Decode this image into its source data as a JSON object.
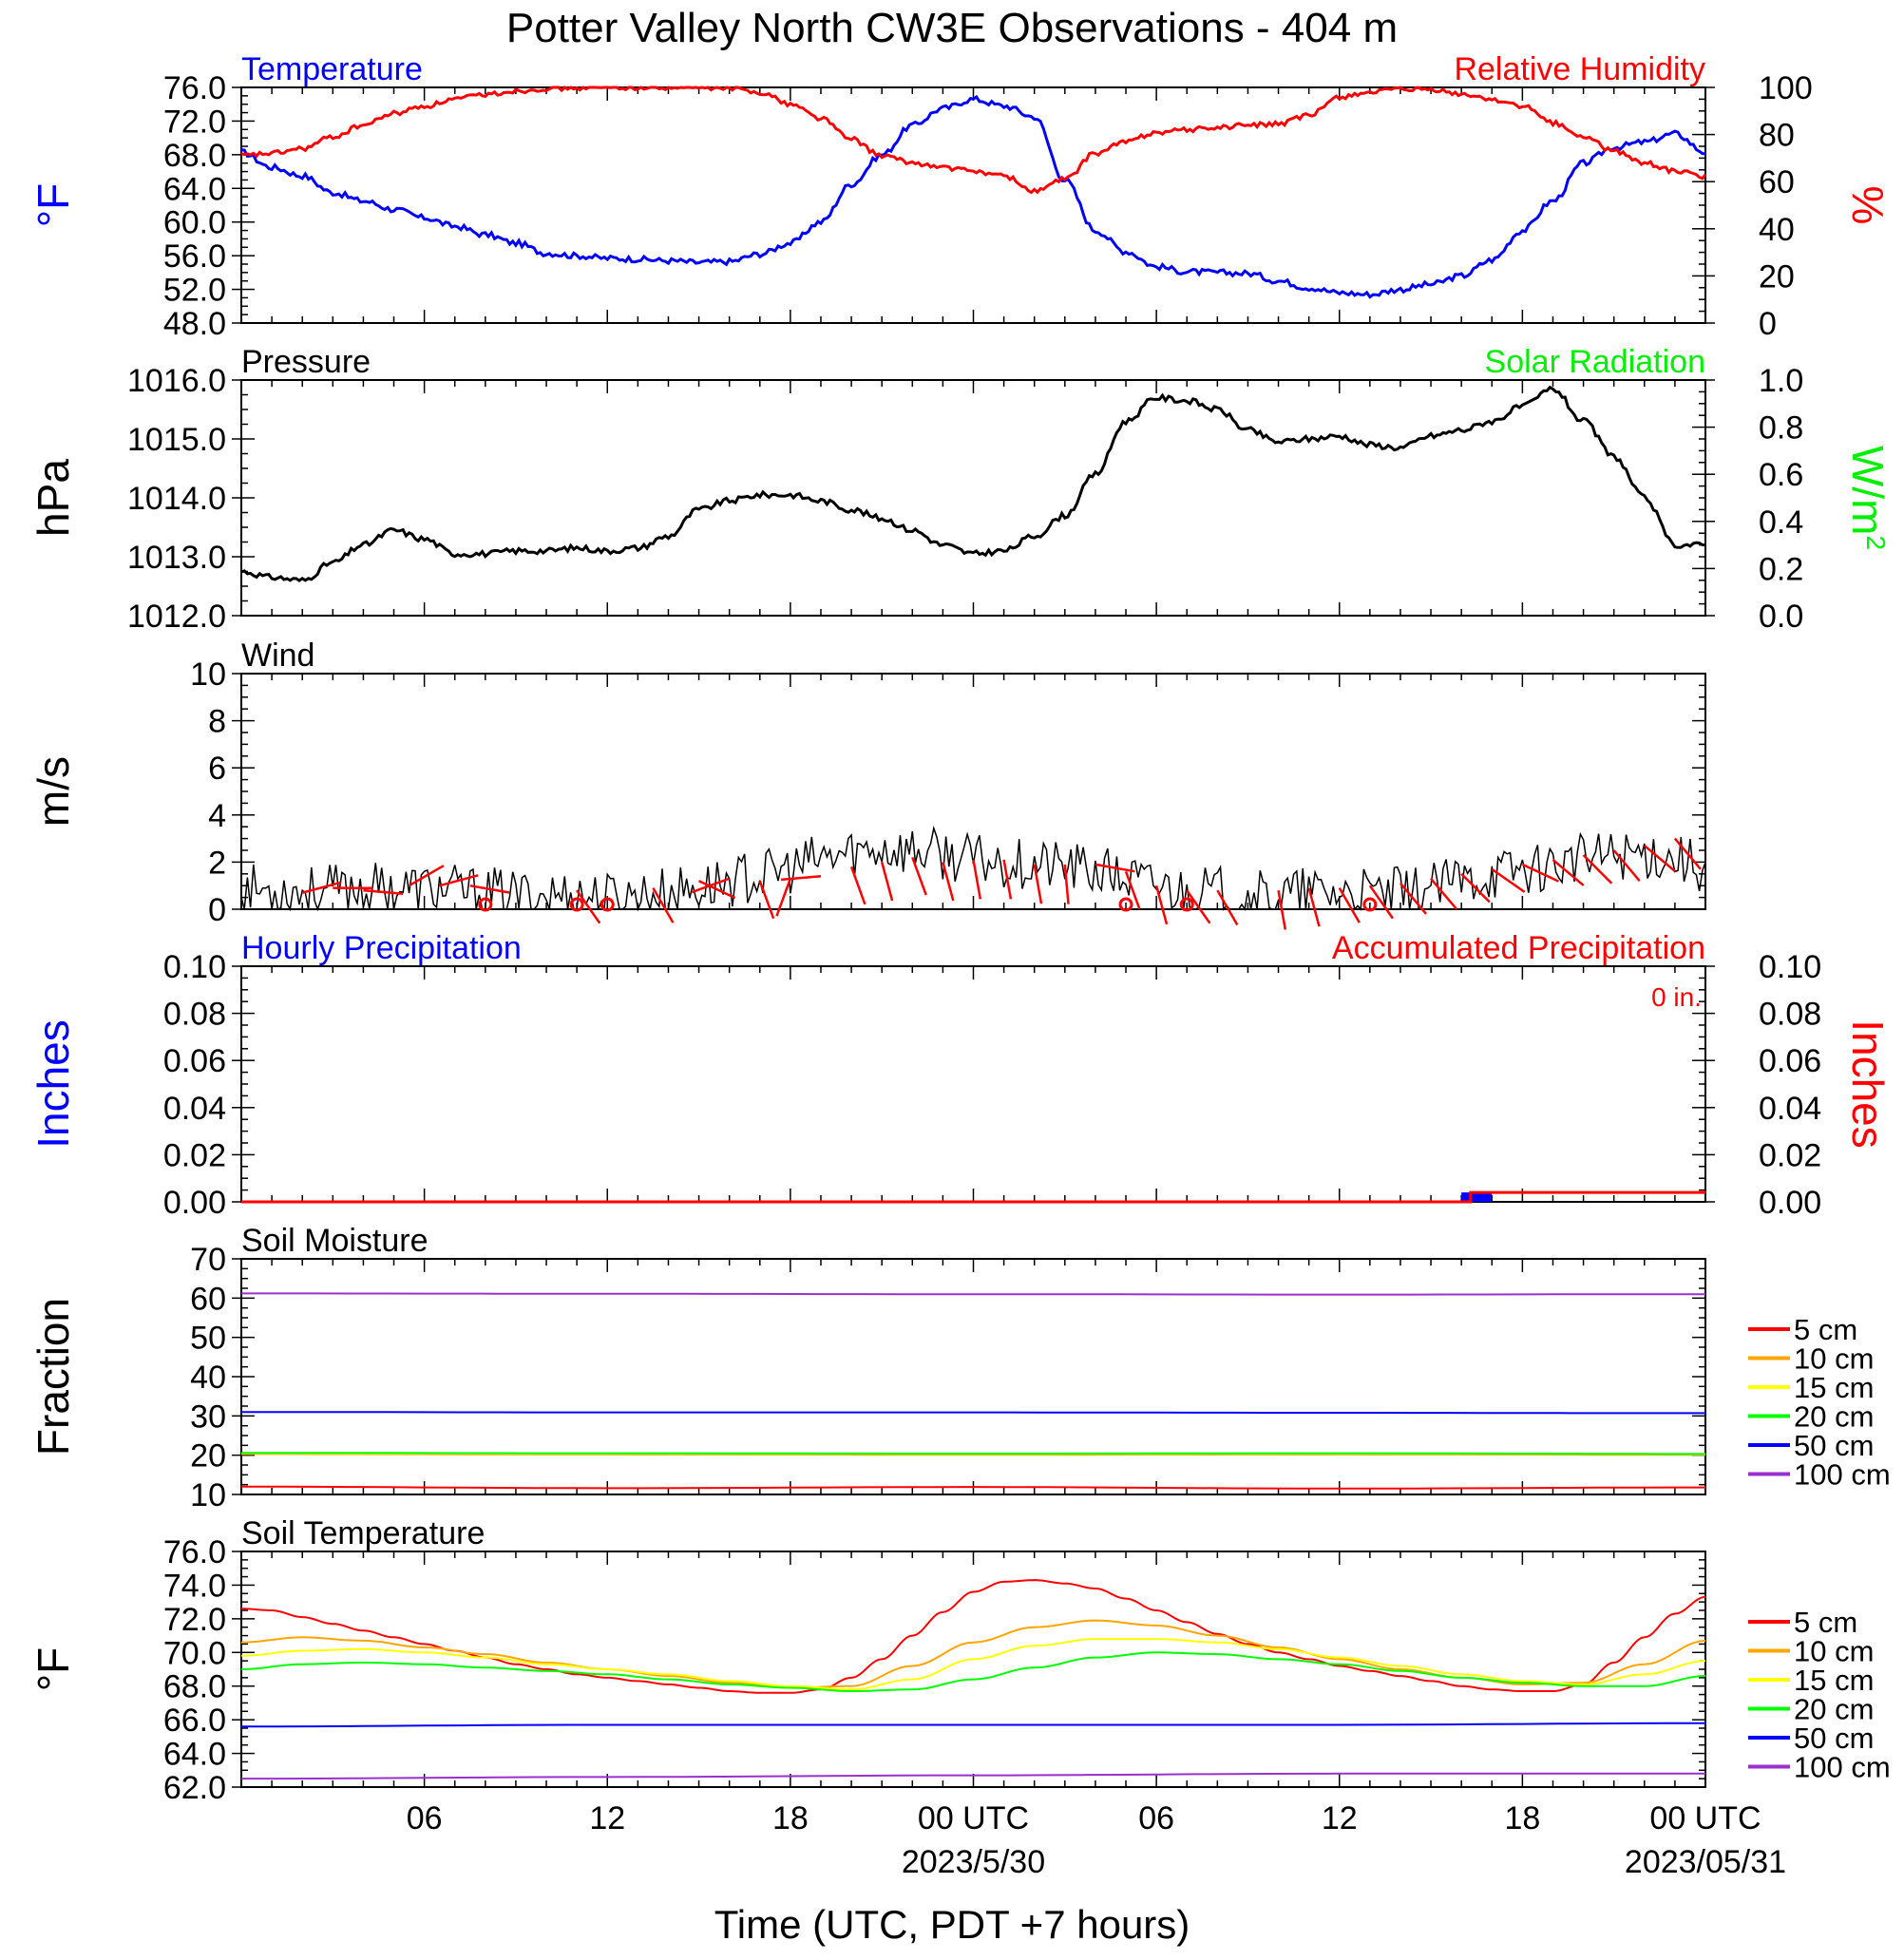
{
  "title": "Potter Valley North CW3E Observations - 404 m",
  "xlabel": "Time (UTC, PDT +7 hours)",
  "time_ticks": [
    {
      "h": 6,
      "label": "06"
    },
    {
      "h": 12,
      "label": "12"
    },
    {
      "h": 18,
      "label": "18"
    },
    {
      "h": 24,
      "label": "00 UTC",
      "date": "2023/5/30"
    },
    {
      "h": 30,
      "label": "06"
    },
    {
      "h": 36,
      "label": "12"
    },
    {
      "h": 42,
      "label": "18"
    },
    {
      "h": 48,
      "label": "00 UTC",
      "date": "2023/05/31"
    }
  ],
  "chart_data": [
    {
      "type": "line",
      "title_left": "Temperature",
      "title_right": "Relative Humidity",
      "ylabel_left": "°F",
      "ylabel_right": "%",
      "ylim_left": [
        48,
        76
      ],
      "ylim_right": [
        0,
        100
      ],
      "yticks_left": [
        "48.0",
        "52.0",
        "56.0",
        "60.0",
        "64.0",
        "68.0",
        "72.0",
        "76.0"
      ],
      "yticks_right": [
        "0",
        "20",
        "40",
        "60",
        "80",
        "100"
      ],
      "series": [
        {
          "name": "Temperature",
          "axis": "left",
          "color": "#0000ff",
          "x": [
            0,
            1,
            2,
            3,
            4,
            5,
            6,
            7,
            8,
            9,
            10,
            11,
            12,
            13,
            14,
            15,
            16,
            17,
            18,
            19,
            20,
            21,
            22,
            23,
            24,
            25,
            26,
            27,
            28,
            29,
            30,
            31,
            32,
            33,
            34,
            35,
            36,
            37,
            38,
            39,
            40,
            41,
            42,
            43,
            44,
            45,
            46,
            47,
            48
          ],
          "y": [
            68.3,
            66.5,
            65.5,
            63.5,
            62.5,
            61.5,
            60.5,
            59.5,
            58.5,
            57.5,
            56.3,
            56,
            55.7,
            55.6,
            55.4,
            55.2,
            55.3,
            56.2,
            57.5,
            60,
            64.5,
            68,
            71.5,
            73.5,
            74.6,
            73.8,
            72.5,
            65,
            59,
            56.5,
            54.7,
            54.1,
            54,
            53.9,
            53,
            52.2,
            51.6,
            51.4,
            52,
            52.6,
            53.6,
            55.5,
            59,
            62.5,
            67,
            68.9,
            69.5,
            70.5,
            68.3
          ]
        },
        {
          "name": "Relative Humidity",
          "axis": "right",
          "color": "#ff0000",
          "x": [
            0,
            1,
            2,
            3,
            4,
            5,
            6,
            7,
            8,
            9,
            10,
            11,
            12,
            13,
            14,
            15,
            16,
            17,
            18,
            19,
            20,
            21,
            22,
            23,
            24,
            25,
            26,
            27,
            28,
            29,
            30,
            31,
            32,
            33,
            34,
            35,
            36,
            37,
            38,
            39,
            40,
            41,
            42,
            43,
            44,
            45,
            46,
            47,
            48
          ],
          "y": [
            71,
            72,
            74,
            79,
            84,
            89,
            92,
            95,
            97,
            98.5,
            99.5,
            99.8,
            100,
            100,
            100,
            100,
            99.5,
            98,
            93,
            87,
            78,
            71,
            68,
            66,
            64.5,
            62.5,
            56,
            61,
            72,
            77,
            81,
            82,
            83,
            84,
            84.5,
            88,
            96,
            98,
            99,
            99,
            97,
            95,
            92,
            85,
            79,
            73,
            68,
            64.5,
            62
          ]
        }
      ]
    },
    {
      "type": "line",
      "title_left": "Pressure",
      "title_right": "Solar Radiation",
      "ylabel_left": "hPa",
      "ylabel_right": "W/m",
      "ylabel_right_sup": "2",
      "ylim_left": [
        1012,
        1016
      ],
      "ylim_right": [
        0,
        1
      ],
      "yticks_left": [
        "1012.0",
        "1013.0",
        "1014.0",
        "1015.0",
        "1016.0"
      ],
      "yticks_right": [
        "0.0",
        "0.2",
        "0.4",
        "0.6",
        "0.8",
        "1.0"
      ],
      "series": [
        {
          "name": "Pressure",
          "axis": "left",
          "color": "#000000",
          "x": [
            0,
            1,
            2,
            3,
            4,
            5,
            6,
            7,
            8,
            9,
            10,
            11,
            12,
            13,
            14,
            15,
            16,
            17,
            18,
            19,
            20,
            21,
            22,
            23,
            24,
            25,
            26,
            27,
            28,
            29,
            30,
            31,
            32,
            33,
            34,
            35,
            36,
            37,
            38,
            39,
            40,
            41,
            42,
            43,
            44,
            45,
            46,
            47,
            48
          ],
          "y": [
            1012.75,
            1012.65,
            1012.6,
            1012.9,
            1013.2,
            1013.45,
            1013.3,
            1013.05,
            1013.05,
            1013.1,
            1013.1,
            1013.15,
            1013.1,
            1013.15,
            1013.35,
            1013.8,
            1013.95,
            1014.05,
            1014.05,
            1013.95,
            1013.8,
            1013.65,
            1013.45,
            1013.2,
            1013.05,
            1013.1,
            1013.35,
            1013.7,
            1014.4,
            1015.3,
            1015.7,
            1015.65,
            1015.5,
            1015.15,
            1014.95,
            1015.0,
            1015.05,
            1014.9,
            1014.85,
            1015.05,
            1015.15,
            1015.3,
            1015.55,
            1015.85,
            1015.3,
            1014.7,
            1014.0,
            1013.2,
            1013.2
          ]
        }
      ]
    },
    {
      "type": "line",
      "title_left": "Wind",
      "ylabel_left": "m/s",
      "ylim_left": [
        0,
        10
      ],
      "yticks_left": [
        "0",
        "2",
        "4",
        "6",
        "8",
        "10"
      ],
      "series": [
        {
          "name": "Wind speed",
          "axis": "left",
          "color": "#000000",
          "x": [
            0,
            1,
            2,
            3,
            4,
            5,
            6,
            7,
            8,
            9,
            10,
            11,
            12,
            13,
            14,
            15,
            16,
            17,
            18,
            19,
            20,
            21,
            22,
            23,
            24,
            25,
            26,
            27,
            28,
            29,
            30,
            31,
            32,
            33,
            34,
            35,
            36,
            37,
            38,
            39,
            40,
            41,
            42,
            43,
            44,
            45,
            46,
            47,
            48
          ],
          "y": [
            0.9,
            0.8,
            0.8,
            0.8,
            0.9,
            0.9,
            0.9,
            0.8,
            0.7,
            0.6,
            0.6,
            0.6,
            0.5,
            0.6,
            0.7,
            0.9,
            1.2,
            1.4,
            1.7,
            2.1,
            2.4,
            2.6,
            2.5,
            2.3,
            2.1,
            2.0,
            1.9,
            1.8,
            1.6,
            1.3,
            1.0,
            0.8,
            0.7,
            0.6,
            0.6,
            0.7,
            0.7,
            0.6,
            0.7,
            0.9,
            1.2,
            1.5,
            1.7,
            1.9,
            2.1,
            2.3,
            2.4,
            2.2,
            1.8
          ]
        }
      ]
    },
    {
      "type": "bar",
      "title_left": "Hourly Precipitation",
      "title_right": "Accumulated Precipitation",
      "annotation": "0 in.",
      "ylabel_left": "Inches",
      "ylabel_right": "Inches",
      "ylim_left": [
        0,
        0.1
      ],
      "ylim_right": [
        0,
        0.1
      ],
      "yticks_left": [
        "0.00",
        "0.02",
        "0.04",
        "0.06",
        "0.08",
        "0.10"
      ],
      "yticks_right": [
        "0.00",
        "0.02",
        "0.04",
        "0.06",
        "0.08",
        "0.10"
      ],
      "hourly": {
        "color": "#0000ff",
        "x": [
          40.5
        ],
        "y": [
          0.004
        ]
      },
      "accumulated": {
        "color": "#ff0000",
        "x": [
          0,
          40.3,
          40.3,
          48
        ],
        "y": [
          0,
          0,
          0.004,
          0.004
        ]
      }
    },
    {
      "type": "line",
      "title_left": "Soil Moisture",
      "ylabel_left": "Fraction",
      "ylim_left": [
        10,
        70
      ],
      "yticks_left": [
        "10",
        "20",
        "30",
        "40",
        "50",
        "60",
        "70"
      ],
      "legend": "right",
      "series": [
        {
          "name": "5 cm",
          "color": "#ff0000",
          "x": [
            0,
            12,
            24,
            36,
            48
          ],
          "y": [
            12.0,
            11.6,
            11.9,
            11.5,
            11.8
          ]
        },
        {
          "name": "10 cm",
          "color": "#ffa500",
          "x": [
            0,
            12,
            24,
            36,
            48
          ],
          "y": [
            20.3,
            20.2,
            20.1,
            20.2,
            20.1
          ]
        },
        {
          "name": "15 cm",
          "color": "#ffff00",
          "x": [
            0,
            12,
            24,
            36,
            48
          ],
          "y": [
            20.5,
            20.4,
            20.3,
            20.4,
            20.3
          ]
        },
        {
          "name": "20 cm",
          "color": "#00ff00",
          "x": [
            0,
            12,
            24,
            36,
            48
          ],
          "y": [
            20.6,
            20.5,
            20.4,
            20.5,
            20.3
          ]
        },
        {
          "name": "50 cm",
          "color": "#0000ff",
          "x": [
            0,
            12,
            24,
            36,
            48
          ],
          "y": [
            31.0,
            30.9,
            30.9,
            30.8,
            30.7
          ]
        },
        {
          "name": "100 cm",
          "color": "#9932cc",
          "x": [
            0,
            12,
            24,
            36,
            48
          ],
          "y": [
            61.2,
            61.1,
            61.0,
            60.9,
            61.0
          ]
        }
      ]
    },
    {
      "type": "line",
      "title_left": "Soil Temperature",
      "ylabel_left": "°F",
      "ylim_left": [
        62,
        76
      ],
      "yticks_left": [
        "62.0",
        "64.0",
        "66.0",
        "68.0",
        "70.0",
        "72.0",
        "74.0",
        "76.0"
      ],
      "legend": "right",
      "series": [
        {
          "name": "5 cm",
          "color": "#ff0000",
          "x": [
            0,
            1,
            2,
            3,
            4,
            5,
            6,
            7,
            8,
            9,
            10,
            11,
            12,
            13,
            14,
            15,
            16,
            17,
            18,
            19,
            20,
            21,
            22,
            23,
            24,
            25,
            26,
            27,
            28,
            29,
            30,
            31,
            32,
            33,
            34,
            35,
            36,
            37,
            38,
            39,
            40,
            41,
            42,
            43,
            44,
            45,
            46,
            47,
            48
          ],
          "y": [
            72.6,
            72.5,
            72.1,
            71.7,
            71.3,
            70.9,
            70.5,
            70.1,
            69.7,
            69.3,
            69.0,
            68.7,
            68.5,
            68.3,
            68.1,
            67.9,
            67.7,
            67.6,
            67.6,
            67.8,
            68.5,
            69.6,
            71.0,
            72.4,
            73.6,
            74.2,
            74.3,
            74.1,
            73.8,
            73.2,
            72.5,
            71.8,
            71.1,
            70.5,
            70.0,
            69.6,
            69.2,
            68.9,
            68.6,
            68.3,
            68.0,
            67.8,
            67.7,
            67.7,
            68.1,
            69.4,
            70.9,
            72.3,
            73.3
          ]
        },
        {
          "name": "10 cm",
          "color": "#ffa500",
          "x": [
            0,
            2,
            4,
            6,
            8,
            10,
            12,
            14,
            16,
            18,
            20,
            22,
            24,
            26,
            28,
            30,
            32,
            34,
            36,
            38,
            40,
            42,
            44,
            46,
            48
          ],
          "y": [
            70.6,
            70.9,
            70.7,
            70.3,
            69.9,
            69.4,
            69.0,
            68.6,
            68.2,
            67.9,
            68.0,
            69.2,
            70.6,
            71.5,
            71.9,
            71.6,
            71.0,
            70.3,
            69.6,
            69.0,
            68.5,
            68.1,
            68.2,
            69.3,
            70.7
          ]
        },
        {
          "name": "15 cm",
          "color": "#ffff00",
          "x": [
            0,
            2,
            4,
            6,
            8,
            10,
            12,
            14,
            16,
            18,
            20,
            22,
            24,
            26,
            28,
            30,
            32,
            34,
            36,
            38,
            40,
            42,
            44,
            46,
            48
          ],
          "y": [
            69.8,
            70.1,
            70.2,
            70.0,
            69.7,
            69.3,
            69.0,
            68.7,
            68.3,
            68.0,
            67.8,
            68.4,
            69.6,
            70.4,
            70.8,
            70.8,
            70.6,
            70.2,
            69.7,
            69.2,
            68.7,
            68.3,
            68.1,
            68.7,
            69.5
          ]
        },
        {
          "name": "20 cm",
          "color": "#00ff00",
          "x": [
            0,
            2,
            4,
            6,
            8,
            10,
            12,
            14,
            16,
            18,
            20,
            22,
            24,
            26,
            28,
            30,
            32,
            34,
            36,
            38,
            40,
            42,
            44,
            46,
            48
          ],
          "y": [
            69.0,
            69.3,
            69.4,
            69.3,
            69.1,
            68.9,
            68.7,
            68.4,
            68.1,
            67.9,
            67.7,
            67.8,
            68.4,
            69.1,
            69.7,
            70.0,
            69.9,
            69.6,
            69.3,
            68.9,
            68.5,
            68.2,
            68.0,
            68.0,
            68.6
          ]
        },
        {
          "name": "50 cm",
          "color": "#0000ff",
          "x": [
            0,
            12,
            24,
            36,
            48
          ],
          "y": [
            65.6,
            65.7,
            65.7,
            65.7,
            65.8
          ]
        },
        {
          "name": "100 cm",
          "color": "#9932cc",
          "x": [
            0,
            12,
            24,
            36,
            48
          ],
          "y": [
            62.5,
            62.6,
            62.7,
            62.8,
            62.8
          ]
        }
      ]
    }
  ]
}
